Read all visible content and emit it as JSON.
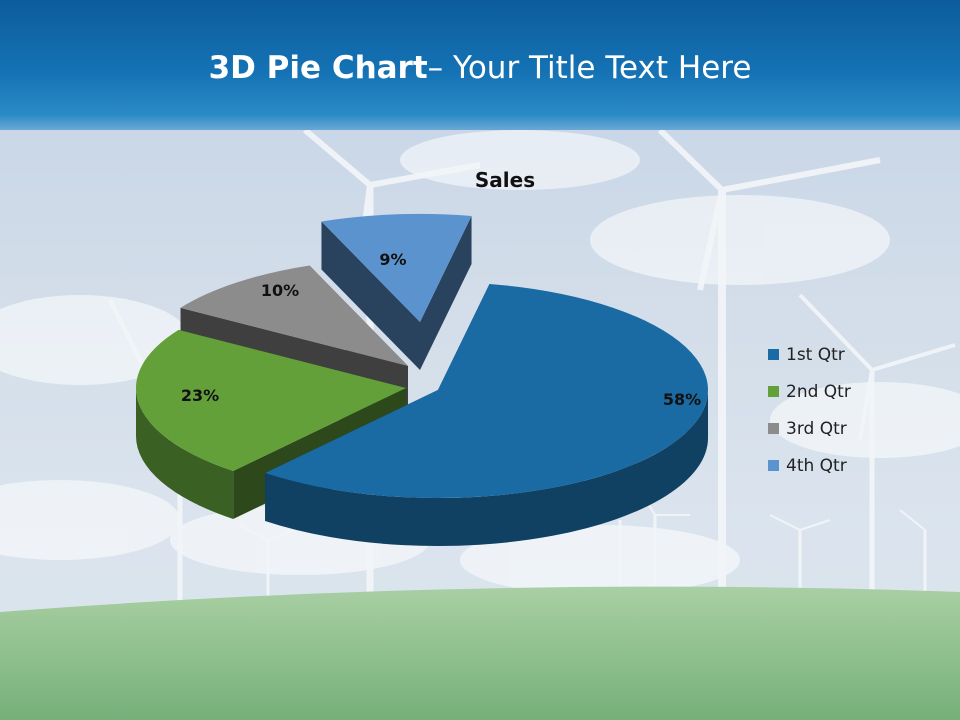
{
  "slide": {
    "title_bold": "3D Pie Chart",
    "title_rest": "– Your Title Text Here"
  },
  "chart_data": {
    "type": "pie",
    "title": "Sales",
    "categories": [
      "1st Qtr",
      "2nd Qtr",
      "3rd Qtr",
      "4th Qtr"
    ],
    "values": [
      58,
      23,
      10,
      9
    ],
    "data_labels": [
      "58%",
      "23%",
      "10%",
      "9%"
    ],
    "colors": [
      "#1a6aa3",
      "#63a03a",
      "#8c8c8c",
      "#5b93cf"
    ],
    "exploded": true,
    "three_d": true,
    "legend_position": "right"
  }
}
